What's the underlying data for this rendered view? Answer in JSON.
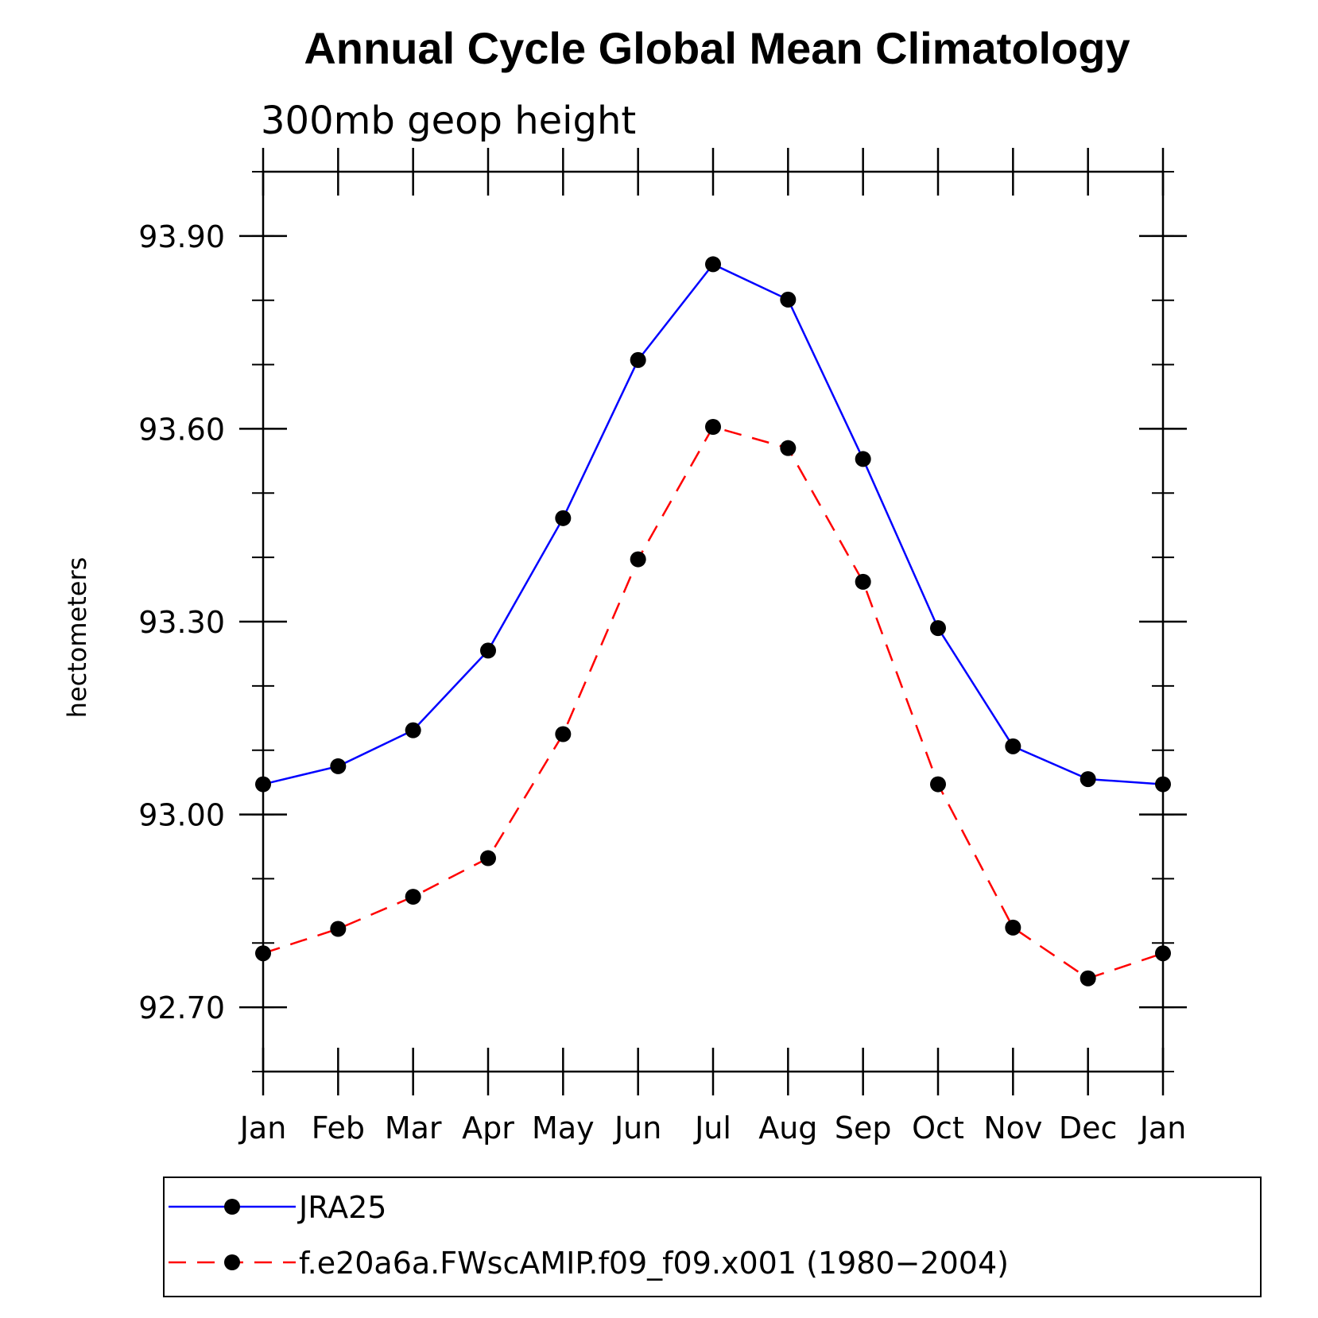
{
  "chart_data": {
    "type": "line",
    "title": "Annual Cycle Global Mean Climatology",
    "subtitle": "300mb geop height",
    "xlabel": "",
    "ylabel": "hectometers",
    "categories": [
      "Jan",
      "Feb",
      "Mar",
      "Apr",
      "May",
      "Jun",
      "Jul",
      "Aug",
      "Sep",
      "Oct",
      "Nov",
      "Dec",
      "Jan"
    ],
    "ylim": [
      92.6,
      94.0
    ],
    "yticks_major": [
      92.7,
      93.0,
      93.3,
      93.6,
      93.9
    ],
    "ytick_labels": [
      "92.70",
      "93.00",
      "93.30",
      "93.60",
      "93.90"
    ],
    "yticks_minor_step": 0.1,
    "grid": false,
    "legend_position": "bottom",
    "series": [
      {
        "name": "JRA25",
        "color": "#0000ff",
        "line_style": "solid",
        "marker": "filled-circle",
        "values": [
          93.047,
          93.075,
          93.131,
          93.255,
          93.461,
          93.707,
          93.856,
          93.801,
          93.553,
          93.29,
          93.106,
          93.055,
          93.047
        ]
      },
      {
        "name": "f.e20a6a.FWscAMIP.f09_f09.x001 (1980−2004)",
        "color": "#ff0000",
        "line_style": "dashed",
        "marker": "filled-circle",
        "values": [
          92.784,
          92.822,
          92.872,
          92.932,
          93.125,
          93.397,
          93.603,
          93.57,
          93.362,
          93.047,
          92.824,
          92.745,
          92.784
        ]
      }
    ]
  }
}
